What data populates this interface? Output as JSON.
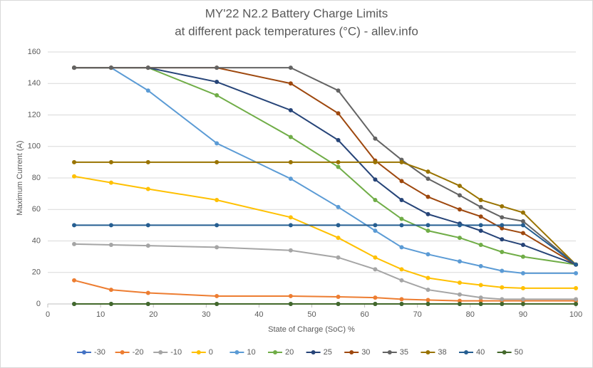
{
  "chart_data": {
    "type": "line",
    "title": "MY'22 N2.2 Battery Charge Limits",
    "subtitle": "at different pack temperatures (°C) - allev.info",
    "x_label": "State of Charge (SoC) %",
    "y_label": "Maximum Current (A)",
    "x": [
      5,
      12,
      19,
      32,
      46,
      55,
      62,
      67,
      72,
      78,
      82,
      86,
      90,
      100
    ],
    "xlim": [
      0,
      100
    ],
    "xticks": [
      0,
      10,
      20,
      30,
      40,
      50,
      60,
      70,
      80,
      90,
      100
    ],
    "ylim": [
      0,
      160
    ],
    "yticks": [
      0,
      20,
      40,
      60,
      80,
      100,
      120,
      140,
      160
    ],
    "grid": true,
    "legend": "bottom",
    "series": [
      {
        "name": "-30",
        "color": "#4472c4",
        "values": [
          0,
          0,
          0,
          0,
          0,
          0,
          0,
          0,
          0,
          0,
          0,
          0,
          0,
          0
        ]
      },
      {
        "name": "-20",
        "color": "#ed7d31",
        "values": [
          15,
          9,
          7,
          5,
          5,
          4.5,
          4,
          3,
          2.5,
          2,
          2,
          2,
          2,
          2
        ]
      },
      {
        "name": "-10",
        "color": "#a5a5a5",
        "values": [
          38,
          37.5,
          37,
          36,
          34,
          29.5,
          22,
          15,
          9,
          6,
          4,
          3,
          3,
          3
        ]
      },
      {
        "name": "0",
        "color": "#ffc000",
        "values": [
          81,
          77,
          73,
          66,
          55,
          42,
          29.5,
          22,
          16.5,
          13.5,
          12,
          10.5,
          10,
          10
        ]
      },
      {
        "name": "10",
        "color": "#5b9bd5",
        "values": [
          150,
          150,
          135.5,
          102,
          79.5,
          61.5,
          46.5,
          36,
          31.5,
          27,
          24,
          21,
          19.5,
          19.5
        ]
      },
      {
        "name": "20",
        "color": "#70ad47",
        "values": [
          150,
          150,
          150,
          132.5,
          106,
          87,
          66,
          54,
          46.5,
          42,
          37.5,
          33,
          30,
          25
        ]
      },
      {
        "name": "25",
        "color": "#264478",
        "values": [
          150,
          150,
          150,
          141,
          123,
          104,
          79,
          66,
          57,
          51,
          46.5,
          41,
          37.5,
          25
        ]
      },
      {
        "name": "30",
        "color": "#9e480e",
        "values": [
          150,
          150,
          150,
          150,
          140,
          121,
          91,
          78,
          68,
          60,
          55.5,
          48,
          45,
          25
        ]
      },
      {
        "name": "35",
        "color": "#636363",
        "values": [
          150,
          150,
          150,
          150,
          150,
          135.5,
          105,
          91.5,
          79.5,
          69,
          61.5,
          55,
          52.5,
          25
        ]
      },
      {
        "name": "38",
        "color": "#997300",
        "values": [
          90,
          90,
          90,
          90,
          90,
          90,
          90,
          90,
          84,
          75,
          66,
          62,
          58,
          25
        ]
      },
      {
        "name": "40",
        "color": "#255e91",
        "values": [
          50,
          50,
          50,
          50,
          50,
          50,
          50,
          50,
          50,
          50,
          50,
          50,
          50,
          25
        ]
      },
      {
        "name": "50",
        "color": "#43682b",
        "values": [
          0,
          0,
          0,
          0,
          0,
          0,
          0,
          0,
          0,
          0,
          0,
          0,
          0,
          0
        ]
      }
    ]
  }
}
